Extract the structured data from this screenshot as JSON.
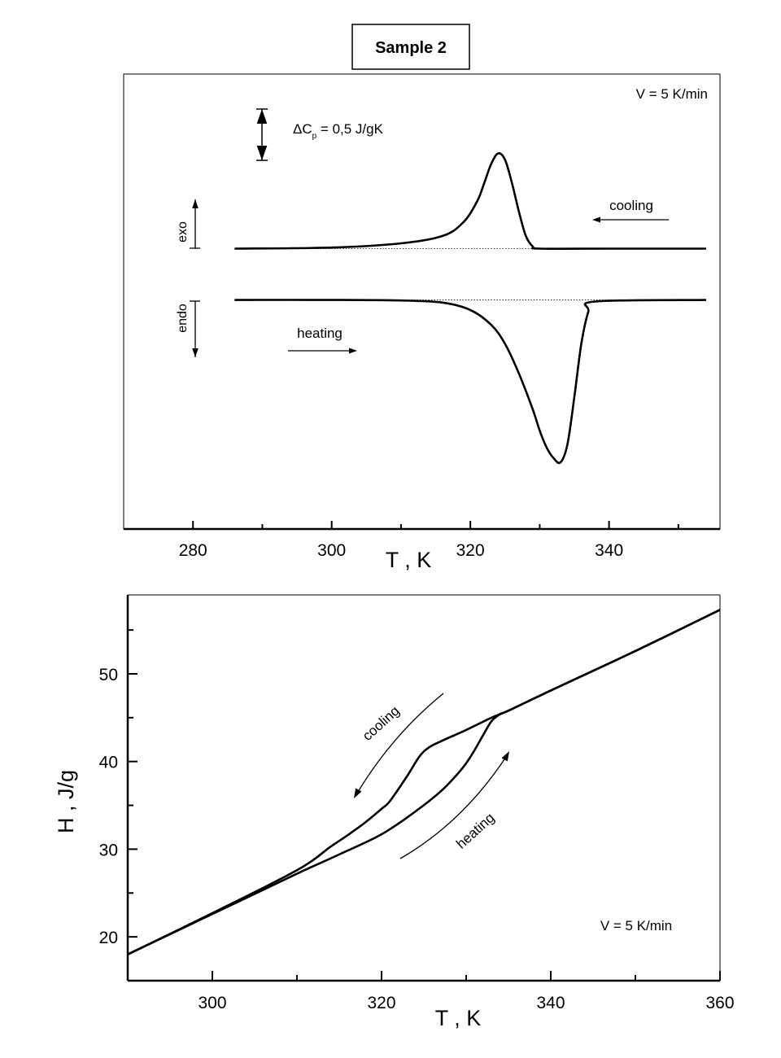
{
  "title": "Sample 2",
  "colors": {
    "line": "#000000",
    "background": "#ffffff"
  },
  "chart_data": [
    {
      "type": "line",
      "title": "Sample 2",
      "xlabel": "T , K",
      "ylabel": "",
      "xlim": [
        270,
        356
      ],
      "ylim": [
        -2.65,
        1.65
      ],
      "y_units_note": "ΔCp scale",
      "xticks": [
        280,
        300,
        320,
        340
      ],
      "xminor": [
        290,
        310,
        330,
        350
      ],
      "annotations": {
        "rate": "V = 5 K/min",
        "scale_prefix": "ΔC",
        "scale_sub": "p",
        "scale_suffix": "= 0,5 J/gK",
        "scale_value": 0.5,
        "exo": "exo",
        "endo": "endo",
        "cooling": "cooling",
        "heating": "heating"
      },
      "series": [
        {
          "name": "cooling",
          "baseline": 0,
          "x": [
            286,
            300,
            310,
            316,
            319,
            321,
            322,
            323,
            324,
            325,
            326,
            327,
            328,
            329,
            330,
            340,
            354
          ],
          "y": [
            0,
            0.01,
            0.05,
            0.12,
            0.25,
            0.45,
            0.62,
            0.8,
            0.9,
            0.84,
            0.62,
            0.35,
            0.12,
            0.02,
            0,
            0,
            0
          ]
        },
        {
          "name": "heating",
          "baseline": -0.485,
          "x": [
            286,
            300,
            310,
            316,
            320,
            323,
            325,
            327,
            329,
            330,
            331,
            332,
            333,
            334,
            335,
            336,
            337,
            338,
            354
          ],
          "y": [
            -0.485,
            -0.485,
            -0.49,
            -0.51,
            -0.58,
            -0.72,
            -0.9,
            -1.18,
            -1.52,
            -1.72,
            -1.88,
            -1.98,
            -2.02,
            -1.85,
            -1.4,
            -0.9,
            -0.6,
            -0.5,
            -0.485
          ]
        }
      ]
    },
    {
      "type": "line",
      "xlabel": "T , K",
      "ylabel": "H , J/g",
      "xlim": [
        290,
        360
      ],
      "ylim": [
        15,
        59
      ],
      "xticks": [
        300,
        320,
        340,
        360
      ],
      "xminor": [
        310,
        330,
        350
      ],
      "yticks": [
        20,
        30,
        40,
        50
      ],
      "yminor": [
        25,
        35,
        45,
        55
      ],
      "annotations": {
        "rate": "V = 5 K/min",
        "cooling": "cooling",
        "heating": "heating"
      },
      "series": [
        {
          "name": "cooling",
          "x": [
            360,
            350,
            340,
            335,
            333,
            330,
            327,
            325.6,
            324.5,
            323,
            321,
            320,
            318,
            316,
            314,
            310,
            300,
            290
          ],
          "y": [
            57.3,
            52.6,
            48.1,
            45.8,
            45,
            43.6,
            42.3,
            41.6,
            40.6,
            38.3,
            35.5,
            34.6,
            33,
            31.6,
            30.3,
            27.6,
            22.7,
            18
          ]
        },
        {
          "name": "heating",
          "x": [
            290,
            300,
            310,
            315,
            320,
            324,
            327,
            329,
            330,
            331,
            332,
            333,
            334,
            335,
            340,
            350,
            360
          ],
          "y": [
            18,
            22.6,
            27.2,
            29.4,
            31.7,
            34.3,
            36.6,
            38.6,
            39.8,
            41.3,
            43,
            44.6,
            45.4,
            45.8,
            48.1,
            52.6,
            57.3
          ]
        }
      ]
    }
  ]
}
